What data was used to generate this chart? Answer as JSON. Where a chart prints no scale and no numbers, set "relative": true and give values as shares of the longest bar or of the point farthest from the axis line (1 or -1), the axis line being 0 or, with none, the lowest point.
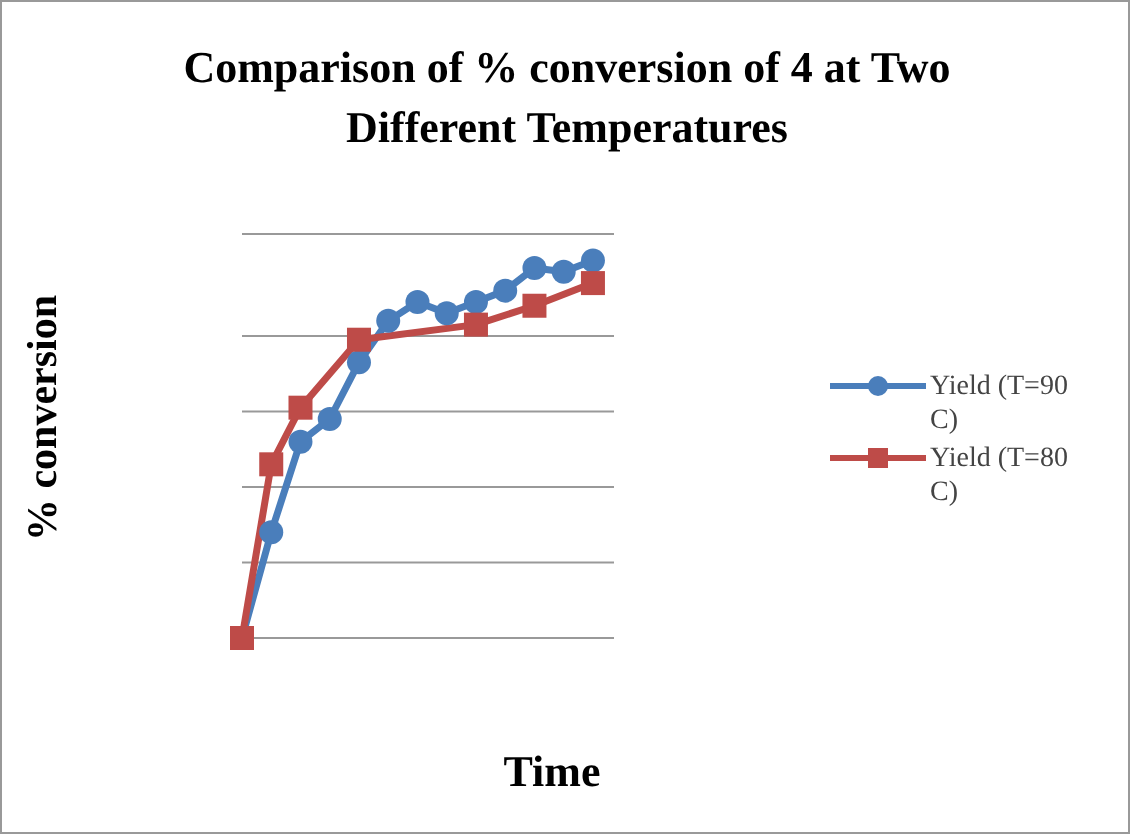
{
  "chart_data": {
    "type": "line",
    "title": "Comparison of % conversion of 4 at Two Different Temperatures",
    "xlabel": "Time",
    "ylabel": "% conversion",
    "relative": true,
    "grid": "y",
    "legend": "right",
    "line_style": "solid",
    "categories": [
      null,
      null,
      null,
      null,
      null,
      null,
      null,
      null,
      null,
      null,
      null,
      null,
      null
    ],
    "series": [
      {
        "name": "Yield (T=90 C)",
        "color": "#4a7ebb",
        "marker": "circle",
        "values": [
          0,
          0.28,
          0.52,
          0.58,
          0.73,
          0.84,
          0.89,
          0.86,
          0.89,
          0.92,
          0.98,
          0.97,
          1
        ]
      },
      {
        "name": "Yield (T=80 C)",
        "color": "#be4b48",
        "marker": "square",
        "values": [
          0,
          0.46,
          0.61,
          null,
          0.79,
          null,
          null,
          null,
          0.83,
          null,
          0.88,
          null,
          0.94
        ]
      }
    ]
  }
}
